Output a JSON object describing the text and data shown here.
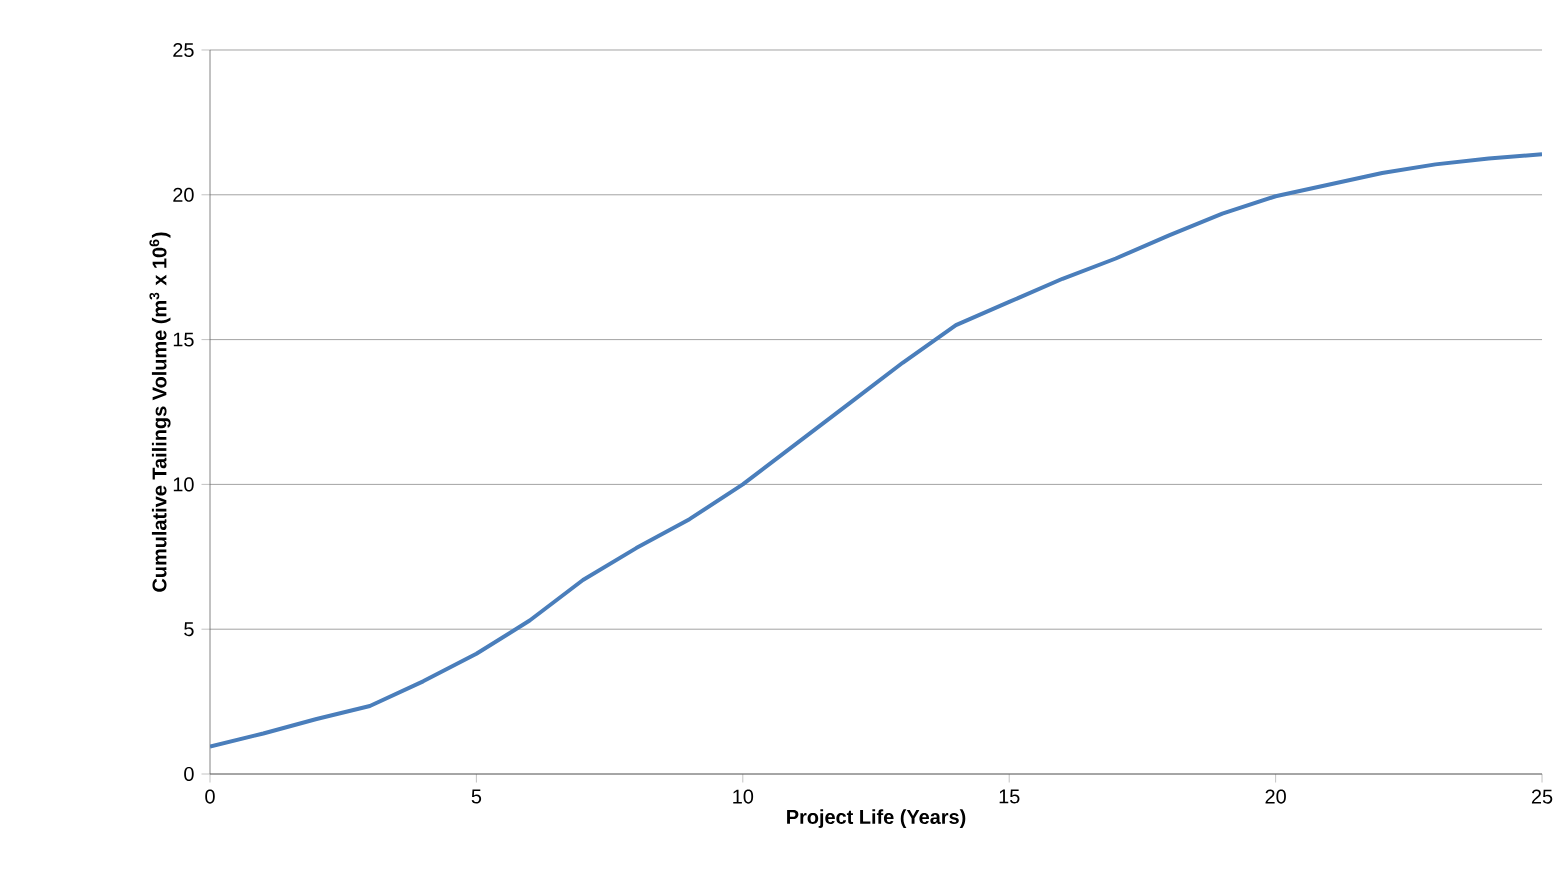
{
  "chart_data": {
    "type": "line",
    "xlabel": "Project Life (Years)",
    "ylabel": "Cumulative Tailings Volume (m$^{3}$ x 10$^{6}$)",
    "x": [
      0,
      1,
      2,
      3,
      4,
      5,
      6,
      7,
      8,
      9,
      10,
      11,
      12,
      13,
      14,
      15,
      16,
      17,
      18,
      19,
      20,
      21,
      22,
      23,
      24,
      25
    ],
    "series": [
      {
        "color": "#4a7ebb",
        "values": [
          0.95,
          1.4,
          1.9,
          2.35,
          3.2,
          4.15,
          5.3,
          6.7,
          7.8,
          8.8,
          10.0,
          11.4,
          12.8,
          14.2,
          15.5,
          16.3,
          17.1,
          17.8,
          18.6,
          19.35,
          19.95,
          20.35,
          20.75,
          21.05,
          21.25,
          21.4
        ]
      }
    ],
    "xlim": [
      0,
      25
    ],
    "ylim": [
      0,
      25
    ],
    "xticks": [
      0,
      5,
      10,
      15,
      20,
      25
    ],
    "yticks": [
      0,
      5,
      10,
      15,
      20,
      25
    ],
    "grid": "y",
    "marker": "none",
    "line_style": "solid"
  }
}
